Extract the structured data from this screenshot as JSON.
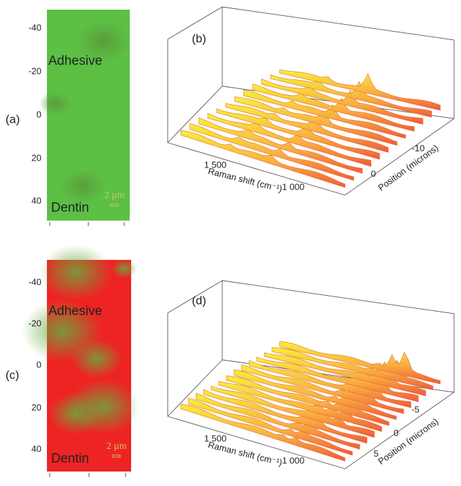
{
  "maps": [
    {
      "label": "(a)",
      "yticks": [
        -40,
        -20,
        0,
        20,
        40
      ],
      "region_top": "Adhesive",
      "region_bottom": "Dentin",
      "scale_bar": "2 µm"
    },
    {
      "label": "(c)",
      "yticks": [
        -40,
        -20,
        0,
        20,
        40
      ],
      "region_top": "Adhesive",
      "region_bottom": "Dentin",
      "scale_bar": "2 µm"
    }
  ],
  "spectra": [
    {
      "label": "(b)",
      "x_axis_label": "Raman shift (cm⁻¹)",
      "x_ticks": [
        "1 500",
        "1 000"
      ],
      "y_axis_label": "Position (microns)",
      "y_ticks": [
        -10,
        0
      ]
    },
    {
      "label": "(d)",
      "x_axis_label": "Raman shift (cm⁻¹)",
      "x_ticks": [
        "1 500",
        "1 000"
      ],
      "y_axis_label": "Position (microns)",
      "y_ticks": [
        -5,
        0,
        5
      ]
    }
  ]
}
